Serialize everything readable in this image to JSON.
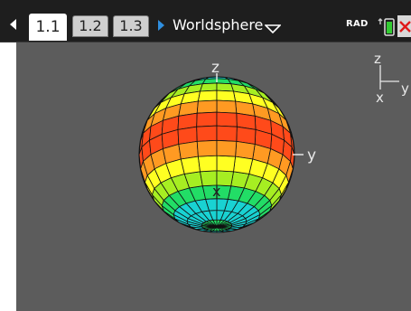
{
  "tabs": [
    {
      "label": "1.1",
      "active": true
    },
    {
      "label": "1.2",
      "active": false
    },
    {
      "label": "1.3",
      "active": false
    }
  ],
  "document": {
    "title": "Worldsphere"
  },
  "status": {
    "angle_mode": "RAD"
  },
  "graph": {
    "axis_labels": {
      "z": "z",
      "y": "y",
      "x": "x"
    },
    "orientation_labels": {
      "z": "z",
      "y": "y",
      "x": "x"
    },
    "colors": {
      "background": "#5c5c5c",
      "topbar": "#1e1e1e",
      "band_colors": [
        "#1c4fd6",
        "#1aa0f0",
        "#19d2d2",
        "#22dd66",
        "#a6ee22",
        "#ffff22",
        "#ff9a22",
        "#ff4a1a"
      ]
    },
    "surface": "sphere",
    "icons": [
      "prev-page-arrow-icon",
      "next-page-arrow-icon",
      "dropdown-triangle-icon",
      "battery-icon",
      "close-icon"
    ]
  }
}
